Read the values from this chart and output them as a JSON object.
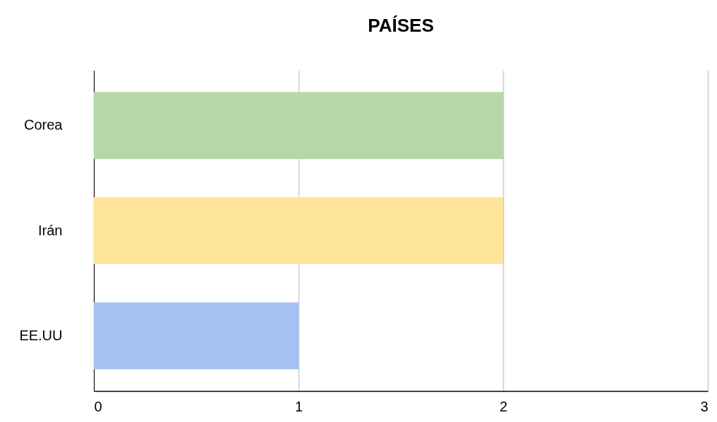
{
  "chart_data": {
    "type": "bar",
    "orientation": "horizontal",
    "title": "PAÍSES",
    "categories": [
      "Corea",
      "Irán",
      "EE.UU"
    ],
    "values": [
      2,
      2,
      1
    ],
    "colors": [
      "#b6d7a8",
      "#ffe599",
      "#a4c2f4"
    ],
    "xlim": [
      0,
      3
    ],
    "xticks": [
      0,
      1,
      2,
      3
    ],
    "grid": "x"
  }
}
